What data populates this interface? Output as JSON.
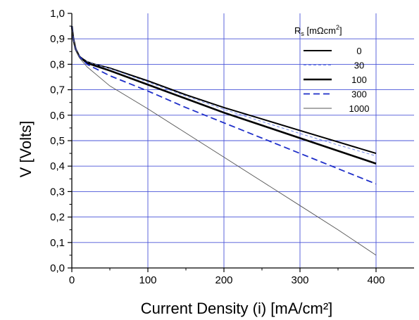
{
  "chart_data": {
    "type": "line",
    "title": "",
    "xlabel": "Current Density (i) [mA/cm²]",
    "ylabel": "V  [Volts]",
    "xlim": [
      0,
      450
    ],
    "ylim": [
      0.0,
      1.0
    ],
    "grid": true,
    "grid_color": "#4a55d8",
    "xticks": [
      0,
      100,
      200,
      300,
      400
    ],
    "xtick_labels": [
      "0",
      "100",
      "200",
      "300",
      "400"
    ],
    "yticks": [
      0.0,
      0.1,
      0.2,
      0.3,
      0.4,
      0.5,
      0.6,
      0.7,
      0.8,
      0.9,
      1.0
    ],
    "ytick_labels": [
      "0,0",
      "0,1",
      "0,2",
      "0,3",
      "0,4",
      "0,5",
      "0,6",
      "0,7",
      "0,8",
      "0,9",
      "1,0"
    ],
    "legend": {
      "placement": "top-right",
      "title_main": "R",
      "title_sub": "s",
      "title_unit": " [mΩcm",
      "title_sup": "2",
      "title_close": "]"
    },
    "series": [
      {
        "name": "0",
        "color": "#000000",
        "style": "solid-thick",
        "x": [
          0,
          2,
          5,
          10,
          20,
          30,
          50,
          100,
          150,
          200,
          250,
          300,
          350,
          400
        ],
        "y": [
          0.95,
          0.9,
          0.86,
          0.83,
          0.81,
          0.8,
          0.785,
          0.735,
          0.68,
          0.63,
          0.585,
          0.54,
          0.495,
          0.45
        ]
      },
      {
        "name": "30",
        "color": "#6f86e6",
        "style": "dashed-thin",
        "x": [
          0,
          2,
          5,
          10,
          20,
          30,
          50,
          100,
          150,
          200,
          250,
          300,
          350,
          400
        ],
        "y": [
          0.95,
          0.9,
          0.86,
          0.83,
          0.81,
          0.8,
          0.783,
          0.73,
          0.675,
          0.623,
          0.575,
          0.528,
          0.483,
          0.44
        ]
      },
      {
        "name": "100",
        "color": "#000000",
        "style": "solid-thicker",
        "x": [
          0,
          2,
          5,
          10,
          20,
          30,
          50,
          100,
          150,
          200,
          250,
          300,
          350,
          400
        ],
        "y": [
          0.95,
          0.9,
          0.86,
          0.83,
          0.805,
          0.795,
          0.775,
          0.72,
          0.665,
          0.61,
          0.56,
          0.51,
          0.46,
          0.41
        ]
      },
      {
        "name": "300",
        "color": "#1f2fc9",
        "style": "dashed-thick",
        "x": [
          0,
          2,
          5,
          10,
          20,
          30,
          50,
          100,
          150,
          200,
          250,
          300,
          350,
          400
        ],
        "y": [
          0.95,
          0.9,
          0.86,
          0.83,
          0.8,
          0.785,
          0.755,
          0.695,
          0.63,
          0.57,
          0.51,
          0.45,
          0.39,
          0.33
        ]
      },
      {
        "name": "1000",
        "color": "#555555",
        "style": "solid-thin",
        "x": [
          0,
          2,
          5,
          10,
          20,
          30,
          50,
          100,
          150,
          200,
          250,
          300,
          350,
          400
        ],
        "y": [
          0.95,
          0.9,
          0.86,
          0.825,
          0.79,
          0.765,
          0.715,
          0.625,
          0.53,
          0.435,
          0.34,
          0.245,
          0.15,
          0.05
        ]
      }
    ]
  }
}
